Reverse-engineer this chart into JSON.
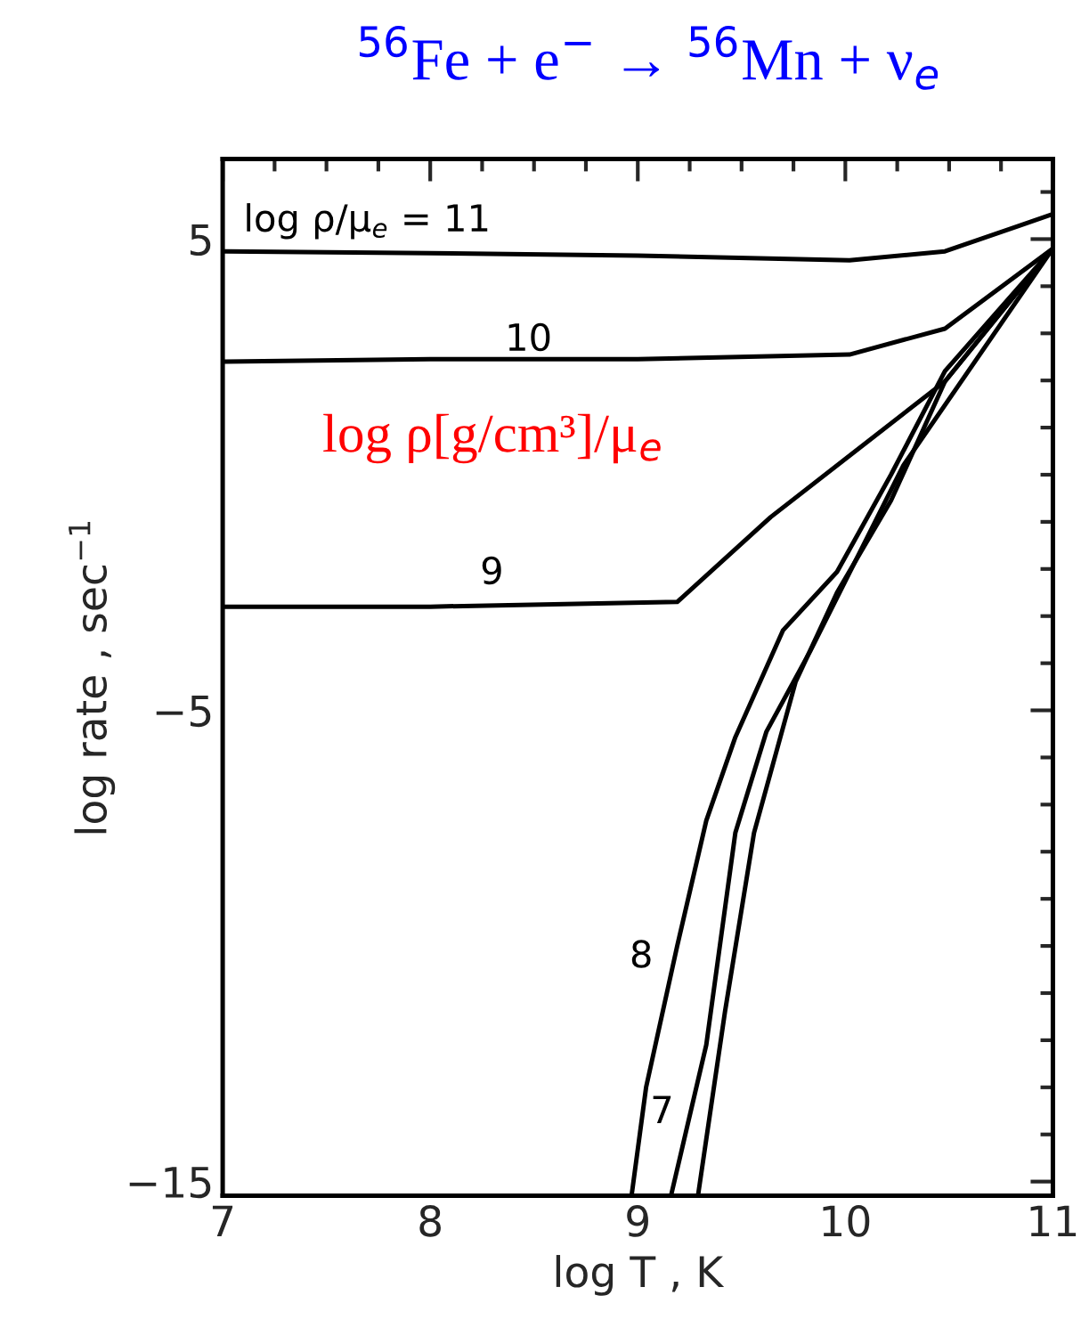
{
  "chart_data": {
    "type": "line",
    "title": "$^{56}$Fe + e$^{−}$ → $^{56}$Mn + ν$_{e}$",
    "xlabel": "log T , K",
    "ylabel": "log rate , sec$^{−1}$",
    "xlim": [
      7,
      11
    ],
    "ylim": [
      -15.3,
      6.7
    ],
    "xticks": [
      7,
      8,
      9,
      10,
      11
    ],
    "yticks": [
      5,
      {
        "value": -5,
        "label": "−5"
      },
      {
        "value": -15,
        "label": "−15"
      }
    ],
    "grid": false,
    "legend": false,
    "marker": "none",
    "line_style": "solid",
    "series": [
      {
        "color": "#000000",
        "x": [
          7,
          8,
          9,
          10.02,
          10.48,
          11
        ],
        "values": [
          4.74,
          4.7,
          4.65,
          4.55,
          4.74,
          5.53
        ]
      },
      {
        "color": "#000000",
        "x": [
          7,
          8,
          9,
          10.02,
          10.48,
          11
        ],
        "values": [
          2.4,
          2.45,
          2.45,
          2.55,
          3.1,
          4.8
        ]
      },
      {
        "color": "#000000",
        "x": [
          7,
          8,
          9.19,
          9.64,
          10.48,
          11
        ],
        "values": [
          -2.8,
          -2.8,
          -2.7,
          -0.9,
          1.98,
          4.8
        ]
      },
      {
        "color": "#000000",
        "x": [
          8.97,
          9.04,
          9.19,
          9.33,
          9.47,
          9.7,
          9.96,
          10.22,
          10.48,
          11
        ],
        "values": [
          -15.3,
          -13.0,
          -10.0,
          -7.34,
          -5.57,
          -3.3,
          -2.06,
          0.0,
          2.2,
          4.8
        ]
      },
      {
        "color": "#000000",
        "x": [
          9.16,
          9.33,
          9.47,
          9.62,
          9.83,
          10.28,
          11
        ],
        "values": [
          -15.3,
          -12.1,
          -7.6,
          -5.45,
          -3.75,
          0.2,
          4.8
        ]
      },
      {
        "color": "#000000",
        "x": [
          9.29,
          9.42,
          9.56,
          9.76,
          9.96,
          10.22,
          10.48,
          11
        ],
        "values": [
          -15.3,
          -11.4,
          -7.6,
          -4.4,
          -2.5,
          -0.55,
          1.98,
          4.8
        ]
      }
    ],
    "annotations": [
      "log ρ/μ$_{e}$ = 11",
      "10",
      "9",
      "8",
      "7",
      "log ρ[g/cm³]/μ$_{e}$"
    ]
  }
}
